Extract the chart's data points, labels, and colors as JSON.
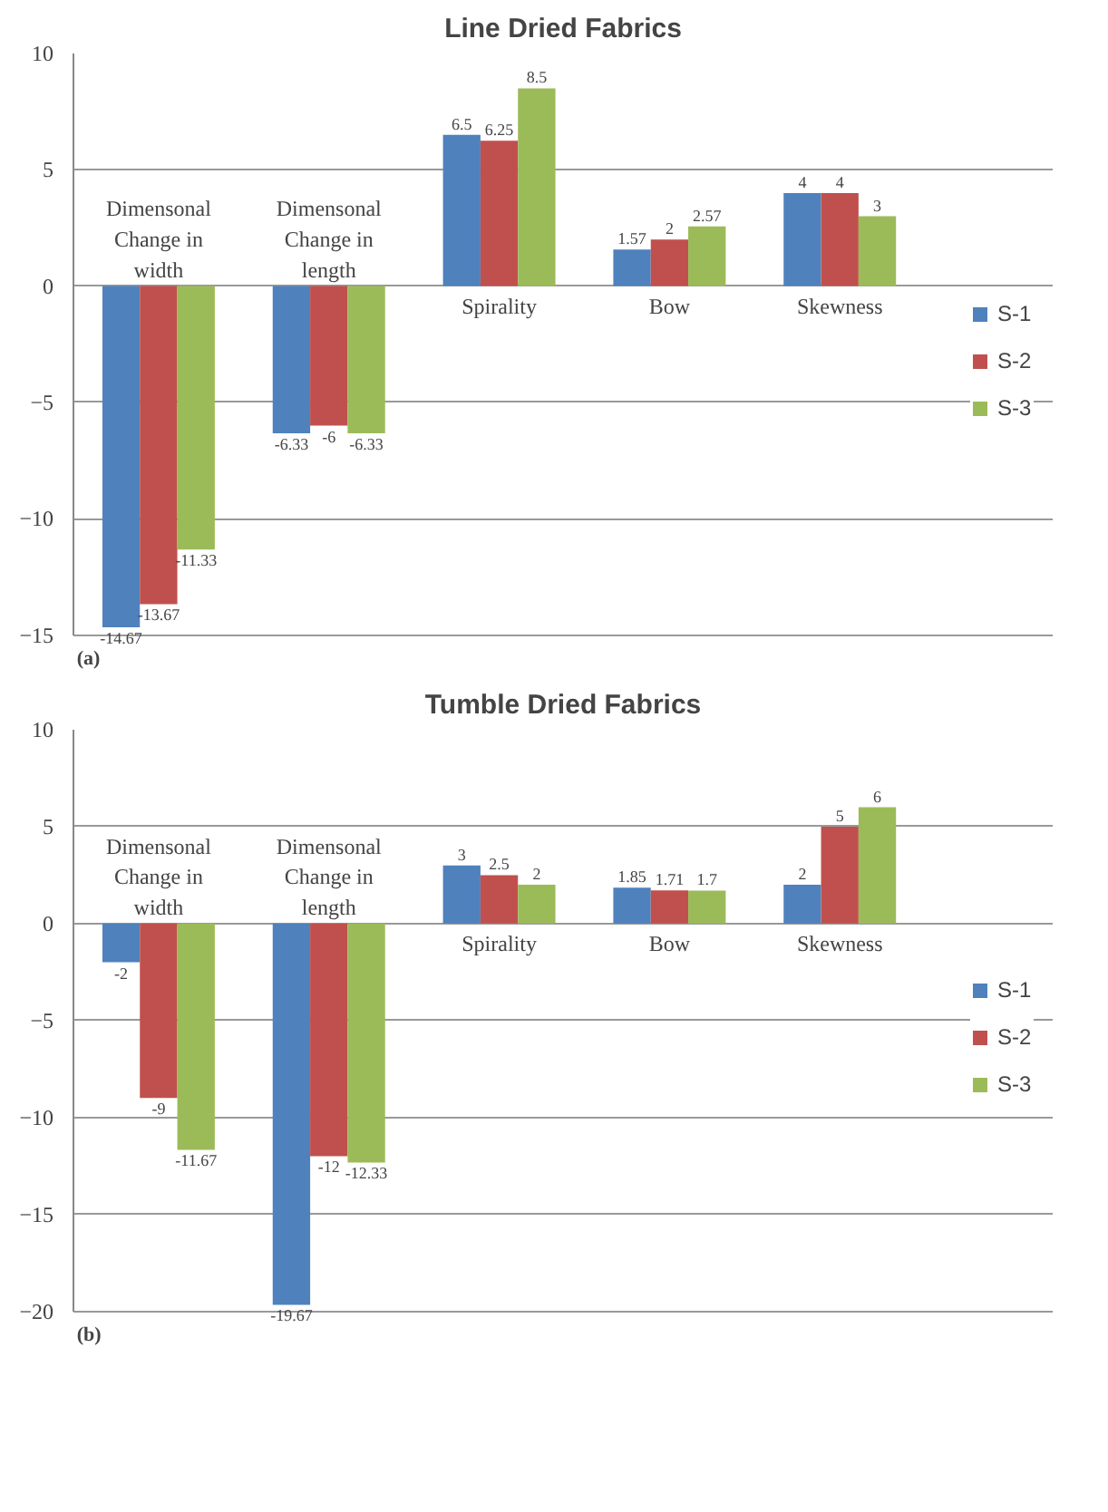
{
  "chart_data": [
    {
      "type": "bar",
      "title": "Line Dried Fabrics",
      "categories": [
        "Dimensonal Change in width",
        "Dimensonal Change in length",
        "Spirality",
        "Bow",
        "Skewness"
      ],
      "series": [
        {
          "name": "S-1",
          "color": "#4f81bd",
          "values": [
            -14.67,
            -6.33,
            6.5,
            1.57,
            4
          ]
        },
        {
          "name": "S-2",
          "color": "#c0504d",
          "values": [
            -13.67,
            -6,
            6.25,
            2,
            4
          ]
        },
        {
          "name": "S-3",
          "color": "#9bbb59",
          "values": [
            -11.33,
            -6.33,
            8.5,
            2.57,
            3
          ]
        }
      ],
      "ylim": [
        -15,
        10
      ],
      "yticks": [
        -15,
        -10,
        -5,
        0,
        5,
        10
      ],
      "grid": "y",
      "legend": "right",
      "data_labels": true,
      "annotations": [
        "(a)"
      ]
    },
    {
      "type": "bar",
      "title": "Tumble Dried Fabrics",
      "categories": [
        "Dimensonal Change in width",
        "Dimensonal Change in length",
        "Spirality",
        "Bow",
        "Skewness"
      ],
      "series": [
        {
          "name": "S-1",
          "color": "#4f81bd",
          "values": [
            -2,
            -19.67,
            3,
            1.85,
            2
          ]
        },
        {
          "name": "S-2",
          "color": "#c0504d",
          "values": [
            -9,
            -12,
            2.5,
            1.71,
            5
          ]
        },
        {
          "name": "S-3",
          "color": "#9bbb59",
          "values": [
            -11.67,
            -12.33,
            2,
            1.7,
            6
          ]
        }
      ],
      "ylim": [
        -20,
        10
      ],
      "yticks": [
        -20,
        -15,
        -10,
        -5,
        0,
        5,
        10
      ],
      "grid": "y",
      "legend": "right",
      "data_labels": true,
      "annotations": [
        "(b)"
      ]
    }
  ]
}
